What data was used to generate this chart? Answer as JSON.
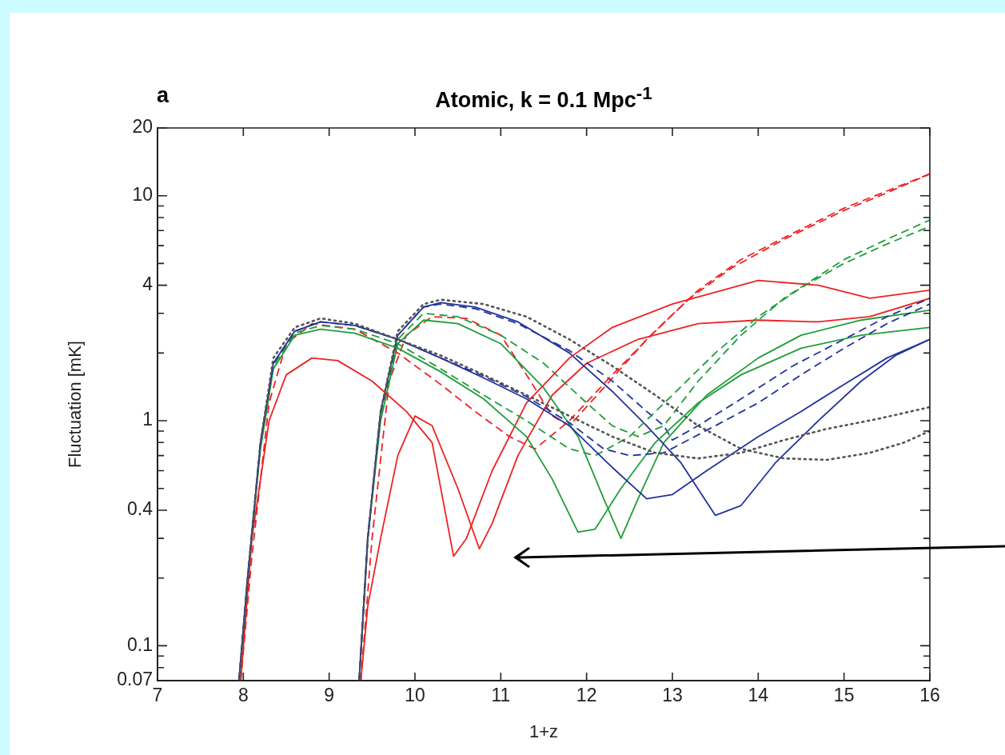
{
  "chart_data": {
    "type": "line",
    "title": "Atomic, k = 0.1 Mpc$^{-1}$",
    "xlabel": "1+z",
    "ylabel": "Fluctuation [mK]",
    "annotations": [
      "a"
    ],
    "log": "y",
    "grid": false,
    "legend": false,
    "marker": "none",
    "xlim": [
      7,
      16
    ],
    "xticks": [
      7,
      8,
      9,
      10,
      11,
      12,
      13,
      14,
      15,
      16
    ],
    "ylim": [
      0.07,
      20
    ],
    "yticks": [
      0.07,
      {
        "value": 0.08,
        "label": null
      },
      {
        "value": 0.09,
        "label": null
      },
      0.1,
      {
        "value": 0.2,
        "label": null
      },
      {
        "value": 0.3,
        "label": null
      },
      0.4,
      {
        "value": 0.5,
        "label": null
      },
      {
        "value": 0.6,
        "label": null
      },
      {
        "value": 0.7,
        "label": null
      },
      {
        "value": 0.8,
        "label": null
      },
      {
        "value": 0.9,
        "label": null
      },
      1,
      {
        "value": 2,
        "label": null
      },
      {
        "value": 3,
        "label": null
      },
      4,
      {
        "value": 5,
        "label": null
      },
      {
        "value": 6,
        "label": null
      },
      {
        "value": 7,
        "label": null
      },
      {
        "value": 8,
        "label": null
      },
      {
        "value": 9,
        "label": null
      },
      10,
      20
    ],
    "series": [
      {
        "color": "#555555",
        "line_style": "dotted",
        "x": [
          7.95,
          8.05,
          8.2,
          8.35,
          8.6,
          8.9,
          9.3,
          9.8,
          10.3,
          10.8,
          11.3,
          11.8,
          12.3,
          12.8,
          13.3,
          13.8,
          14.3,
          14.8,
          15.4,
          16
        ],
        "values": [
          0.07,
          0.2,
          0.8,
          1.9,
          2.6,
          2.85,
          2.7,
          2.3,
          1.95,
          1.6,
          1.3,
          1.05,
          0.85,
          0.72,
          0.68,
          0.72,
          0.82,
          0.92,
          1.02,
          1.15
        ]
      },
      {
        "color": "#23339a",
        "line_style": "solid",
        "x": [
          7.95,
          8.05,
          8.2,
          8.35,
          8.6,
          8.9,
          9.3,
          9.8,
          10.3,
          10.8,
          11.3,
          11.8,
          12.3,
          12.7,
          13.0,
          13.4,
          14.0,
          14.5,
          15.0,
          15.5,
          16
        ],
        "values": [
          0.07,
          0.2,
          0.8,
          1.8,
          2.5,
          2.75,
          2.65,
          2.3,
          1.9,
          1.55,
          1.25,
          0.95,
          0.62,
          0.45,
          0.47,
          0.6,
          0.85,
          1.1,
          1.45,
          1.9,
          2.3
        ]
      },
      {
        "color": "#23339a",
        "line_style": "dashed",
        "x": [
          7.95,
          8.05,
          8.2,
          8.35,
          8.6,
          8.9,
          9.3,
          9.8,
          10.3,
          10.8,
          11.3,
          11.8,
          12.2,
          12.5,
          12.9,
          13.5,
          14.0,
          14.5,
          15,
          15.5,
          16
        ],
        "values": [
          0.07,
          0.2,
          0.8,
          1.8,
          2.5,
          2.75,
          2.65,
          2.3,
          1.9,
          1.58,
          1.28,
          0.98,
          0.75,
          0.7,
          0.72,
          0.95,
          1.2,
          1.6,
          2.1,
          2.7,
          3.3
        ]
      },
      {
        "color": "#1f9e3a",
        "line_style": "solid",
        "x": [
          7.95,
          8.05,
          8.2,
          8.35,
          8.6,
          8.9,
          9.3,
          9.8,
          10.3,
          10.8,
          11.3,
          11.6,
          11.9,
          12.1,
          12.4,
          12.8,
          13.3,
          13.8,
          14.5,
          15.2,
          16
        ],
        "values": [
          0.07,
          0.2,
          0.75,
          1.7,
          2.4,
          2.55,
          2.45,
          2.1,
          1.65,
          1.25,
          0.85,
          0.55,
          0.32,
          0.33,
          0.5,
          0.8,
          1.2,
          1.6,
          2.1,
          2.4,
          2.6
        ]
      },
      {
        "color": "#1f9e3a",
        "line_style": "dashed",
        "x": [
          7.95,
          8.05,
          8.2,
          8.35,
          8.6,
          8.9,
          9.3,
          9.8,
          10.3,
          10.8,
          11.3,
          11.8,
          12.1,
          12.5,
          13,
          13.5,
          14,
          14.5,
          15,
          15.5,
          16
        ],
        "values": [
          0.07,
          0.2,
          0.78,
          1.75,
          2.45,
          2.65,
          2.55,
          2.2,
          1.7,
          1.3,
          1.0,
          0.75,
          0.7,
          0.85,
          1.3,
          2.0,
          2.9,
          3.9,
          5.0,
          6.1,
          7.3
        ]
      },
      {
        "color": "#ee2222",
        "line_style": "solid",
        "x": [
          7.97,
          8.1,
          8.3,
          8.5,
          8.8,
          9.1,
          9.5,
          9.9,
          10.2,
          10.45,
          10.6,
          10.9,
          11.3,
          11.8,
          12.3,
          13,
          14,
          14.7,
          15.3,
          16
        ],
        "values": [
          0.07,
          0.3,
          1.0,
          1.6,
          1.9,
          1.85,
          1.5,
          1.1,
          0.8,
          0.25,
          0.3,
          0.6,
          1.2,
          1.9,
          2.6,
          3.3,
          4.2,
          4.0,
          3.5,
          3.8
        ]
      },
      {
        "color": "#ee2222",
        "line_style": "dashed",
        "x": [
          7.97,
          8.1,
          8.3,
          8.5,
          8.8,
          9.3,
          9.8,
          10.3,
          10.7,
          11.1,
          11.4,
          11.8,
          12.3,
          12.8,
          13.3,
          13.8,
          14.4,
          15,
          15.5,
          16
        ],
        "values": [
          0.07,
          0.25,
          1.2,
          2.2,
          2.7,
          2.55,
          2.0,
          1.45,
          1.1,
          0.85,
          0.75,
          1.0,
          1.6,
          2.5,
          3.8,
          5.2,
          6.8,
          8.8,
          10.5,
          12.5
        ]
      },
      {
        "color": "#555555",
        "line_style": "dotted",
        "x": [
          9.35,
          9.45,
          9.6,
          9.8,
          10.1,
          10.3,
          10.8,
          11.3,
          11.8,
          12.3,
          12.8,
          13.3,
          13.8,
          14.3,
          14.8,
          15.3,
          15.7,
          16
        ],
        "values": [
          0.07,
          0.3,
          1.1,
          2.5,
          3.3,
          3.45,
          3.3,
          2.9,
          2.3,
          1.75,
          1.3,
          0.95,
          0.75,
          0.68,
          0.67,
          0.72,
          0.8,
          0.9
        ]
      },
      {
        "color": "#23339a",
        "line_style": "solid",
        "x": [
          9.35,
          9.45,
          9.6,
          9.8,
          10.1,
          10.3,
          10.7,
          11.2,
          11.8,
          12.3,
          12.7,
          13.1,
          13.5,
          13.8,
          14.2,
          14.7,
          15.2,
          15.6,
          16
        ],
        "values": [
          0.07,
          0.3,
          1.1,
          2.4,
          3.2,
          3.35,
          3.2,
          2.75,
          2.0,
          1.35,
          0.95,
          0.65,
          0.38,
          0.42,
          0.65,
          1.0,
          1.5,
          1.95,
          2.3
        ]
      },
      {
        "color": "#23339a",
        "line_style": "dashed",
        "x": [
          9.35,
          9.45,
          9.6,
          9.8,
          10.1,
          10.3,
          10.7,
          11.2,
          11.8,
          12.3,
          12.7,
          12.9,
          13.0,
          13.3,
          13.8,
          14.4,
          15,
          15.5,
          16
        ],
        "values": [
          0.07,
          0.3,
          1.1,
          2.4,
          3.2,
          3.3,
          3.15,
          2.7,
          2.05,
          1.5,
          1.1,
          0.95,
          0.82,
          0.95,
          1.25,
          1.75,
          2.3,
          2.9,
          3.5
        ]
      },
      {
        "color": "#1f9e3a",
        "line_style": "solid",
        "x": [
          9.35,
          9.45,
          9.6,
          9.8,
          10.1,
          10.5,
          11,
          11.5,
          11.9,
          12.2,
          12.4,
          12.6,
          12.9,
          13.4,
          14,
          14.5,
          15.2,
          16
        ],
        "values": [
          0.07,
          0.3,
          1.0,
          2.2,
          2.8,
          2.7,
          2.2,
          1.4,
          0.85,
          0.45,
          0.3,
          0.45,
          0.8,
          1.3,
          1.9,
          2.4,
          2.8,
          3.1
        ]
      },
      {
        "color": "#1f9e3a",
        "line_style": "dashed",
        "x": [
          9.35,
          9.45,
          9.6,
          9.8,
          10.1,
          10.5,
          11,
          11.5,
          12,
          12.3,
          12.6,
          12.9,
          13.3,
          13.8,
          14.3,
          15,
          15.5,
          16
        ],
        "values": [
          0.07,
          0.3,
          1.05,
          2.3,
          3.0,
          2.9,
          2.4,
          1.8,
          1.2,
          0.95,
          0.85,
          0.95,
          1.5,
          2.4,
          3.5,
          5.2,
          6.4,
          7.8
        ]
      },
      {
        "color": "#ee2222",
        "line_style": "solid",
        "x": [
          9.37,
          9.45,
          9.6,
          9.8,
          10.0,
          10.2,
          10.5,
          10.75,
          10.9,
          11.2,
          11.6,
          12,
          12.6,
          13.3,
          14,
          14.7,
          15.3,
          16
        ],
        "values": [
          0.07,
          0.15,
          0.3,
          0.7,
          1.05,
          0.95,
          0.5,
          0.27,
          0.35,
          0.7,
          1.3,
          1.8,
          2.3,
          2.7,
          2.8,
          2.75,
          2.9,
          3.5
        ]
      },
      {
        "color": "#ee2222",
        "line_style": "dashed",
        "x": [
          9.37,
          9.5,
          9.7,
          9.9,
          10.2,
          10.6,
          11,
          11.3,
          11.6,
          11.8,
          12.2,
          12.7,
          13.2,
          13.7,
          14.3,
          15,
          15.5,
          16
        ],
        "values": [
          0.07,
          0.3,
          1.5,
          2.4,
          2.9,
          2.85,
          2.4,
          1.6,
          1.05,
          0.95,
          1.4,
          2.3,
          3.5,
          4.8,
          6.4,
          8.6,
          10.3,
          12.5
        ]
      }
    ]
  }
}
